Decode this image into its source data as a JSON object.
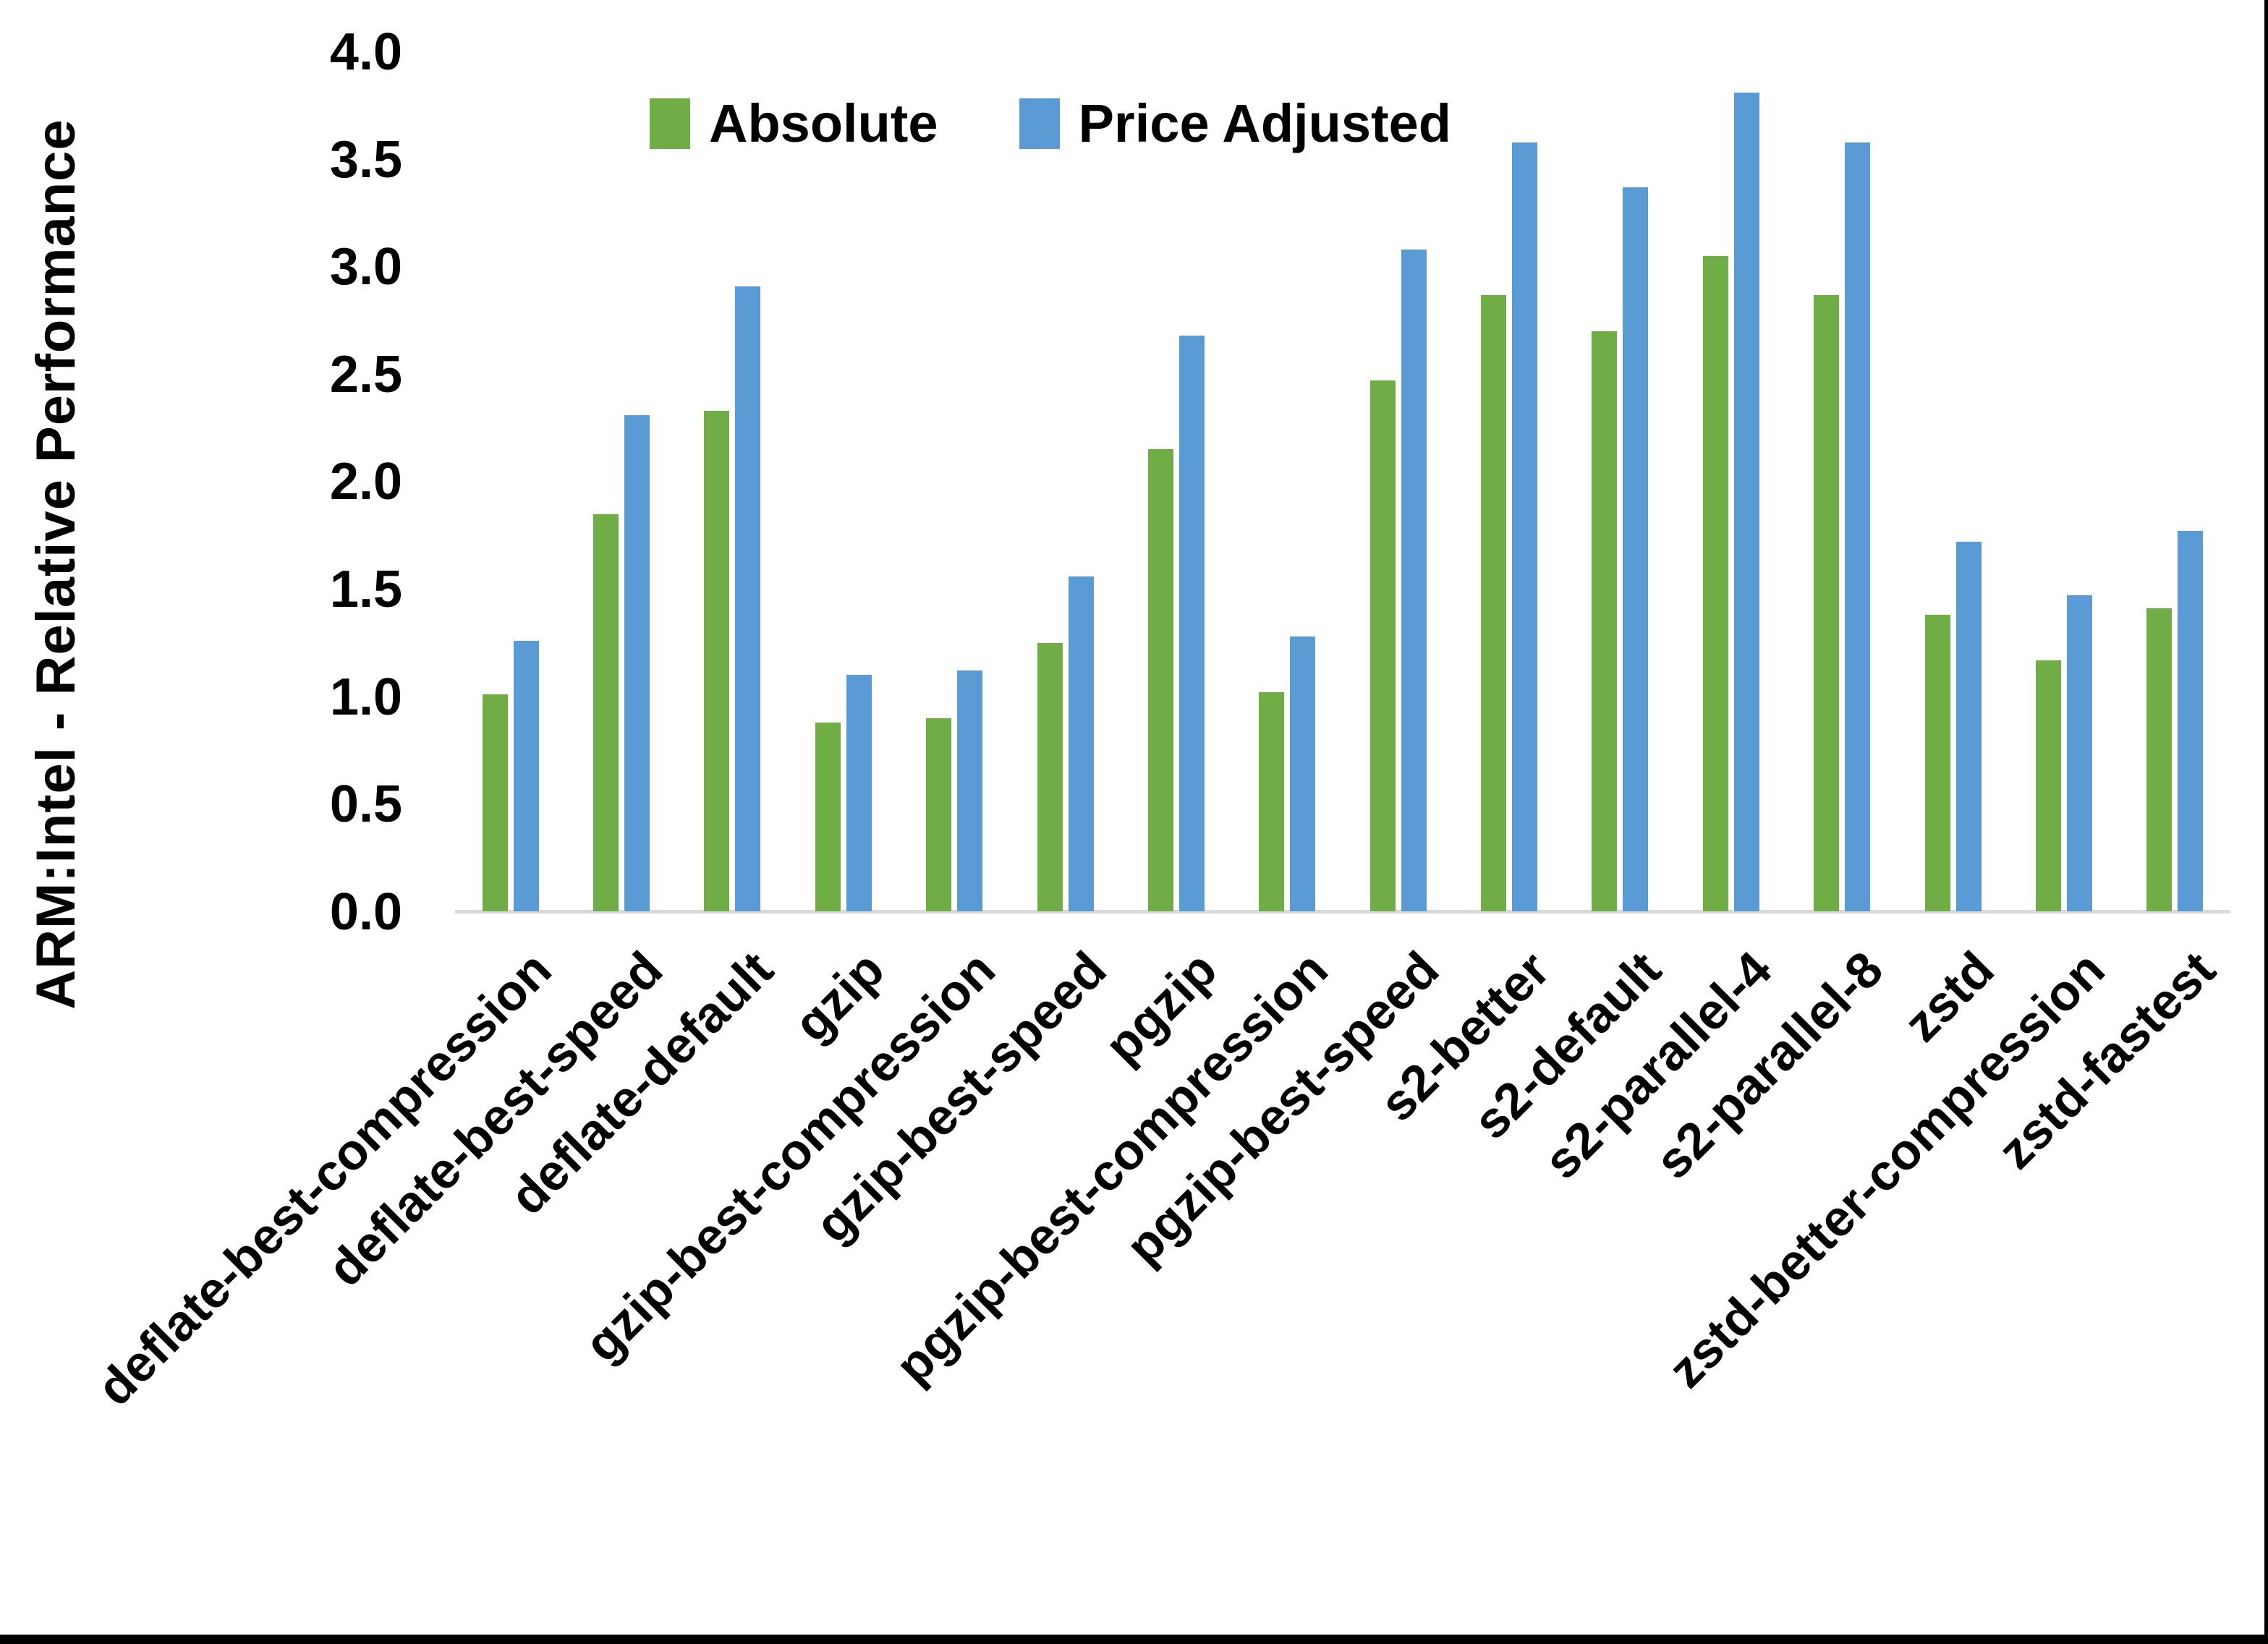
{
  "chart_data": {
    "type": "bar",
    "title": "",
    "xlabel": "",
    "ylabel": "ARM:Intel - Relative Performance",
    "ylim": [
      0.0,
      4.0
    ],
    "ytick_step": 0.5,
    "yticks": [
      "4.0",
      "3.5",
      "3.0",
      "2.5",
      "2.0",
      "1.5",
      "1.0",
      "0.5",
      "0.0"
    ],
    "grid": false,
    "legend_position": "top-center",
    "categories": [
      "deflate-best-compression",
      "deflate-best-speed",
      "deflate-default",
      "gzip",
      "gzip-best-compression",
      "gzip-best-speed",
      "pgzip",
      "pgzip-best-compression",
      "pgzip-best-speed",
      "s2-better",
      "s2-default",
      "s2-parallel-4",
      "s2-parallel-8",
      "zstd",
      "zstd-better-compression",
      "zstd-fastest"
    ],
    "series": [
      {
        "name": "Absolute",
        "color": "#70AD47",
        "values": [
          1.01,
          1.85,
          2.33,
          0.88,
          0.9,
          1.25,
          2.15,
          1.02,
          2.47,
          2.87,
          2.7,
          3.05,
          2.87,
          1.38,
          1.17,
          1.41
        ]
      },
      {
        "name": "Price Adjusted",
        "color": "#5B9BD5",
        "values": [
          1.26,
          2.31,
          2.91,
          1.1,
          1.12,
          1.56,
          2.68,
          1.28,
          3.08,
          3.58,
          3.37,
          3.81,
          3.58,
          1.72,
          1.47,
          1.77
        ]
      }
    ]
  },
  "colors": {
    "background": "#FFFFFF",
    "text": "#000000",
    "axis_line": "#D9D9D9",
    "border": "#000000"
  }
}
